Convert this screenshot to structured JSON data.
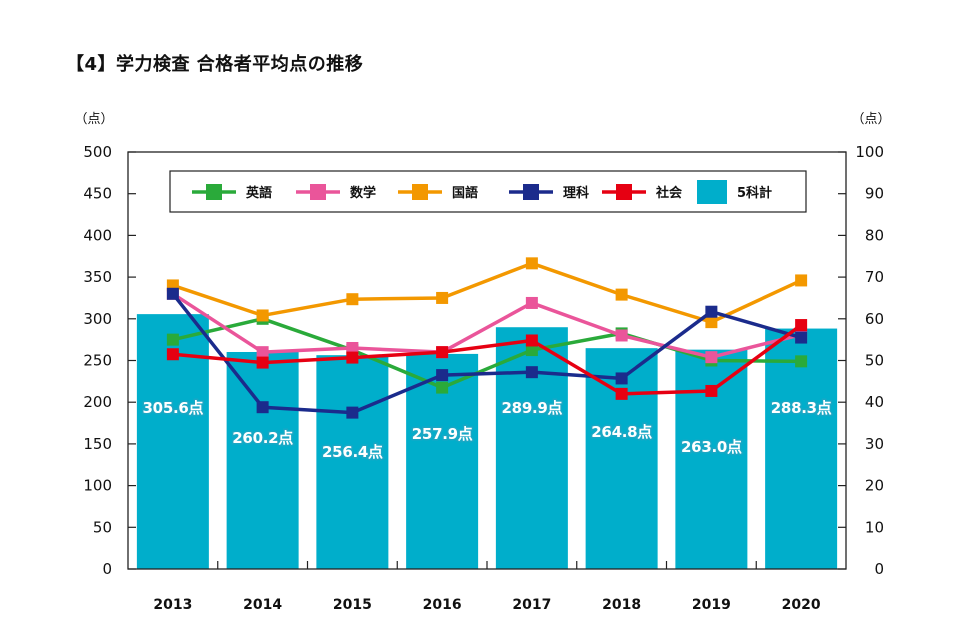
{
  "title": "【4】学力検査 合格者平均点の推移",
  "chart_data": {
    "type": "bar+line",
    "categories": [
      "2013",
      "2014",
      "2015",
      "2016",
      "2017",
      "2018",
      "2019",
      "2020"
    ],
    "left_axis": {
      "unit": "（点）",
      "ylim": [
        0,
        500
      ],
      "ticks": [
        "0",
        "50",
        "100",
        "150",
        "200",
        "250",
        "300",
        "350",
        "400",
        "450",
        "500"
      ]
    },
    "right_axis": {
      "unit": "（点）",
      "ylim": [
        0,
        100
      ],
      "ticks": [
        "0",
        "10",
        "20",
        "30",
        "40",
        "50",
        "60",
        "70",
        "80",
        "90",
        "100"
      ]
    },
    "bars": {
      "name": "5科計",
      "axis": "left",
      "color": "#00aecb",
      "values": [
        305.6,
        260.2,
        256.4,
        257.9,
        289.9,
        264.8,
        263.0,
        288.3
      ],
      "labels": [
        "305.6点",
        "260.2点",
        "256.4点",
        "257.9点",
        "289.9点",
        "264.8点",
        "263.0点",
        "288.3点"
      ]
    },
    "series": [
      {
        "name": "英語",
        "axis": "right",
        "color": "#2aaa3a",
        "values": [
          55.0,
          60.0,
          52.5,
          43.5,
          52.5,
          56.5,
          50.0,
          49.8
        ]
      },
      {
        "name": "数学",
        "axis": "right",
        "color": "#ea559a",
        "values": [
          66.0,
          52.0,
          53.0,
          52.0,
          63.8,
          56.0,
          50.8,
          56.2
        ]
      },
      {
        "name": "国語",
        "axis": "right",
        "color": "#f39800",
        "values": [
          68.0,
          60.8,
          64.7,
          65.0,
          73.3,
          65.8,
          59.2,
          69.2
        ]
      },
      {
        "name": "理科",
        "axis": "right",
        "color": "#1b2b8c",
        "values": [
          66.0,
          38.8,
          37.5,
          46.5,
          47.2,
          45.7,
          61.7,
          55.5
        ]
      },
      {
        "name": "社会",
        "axis": "right",
        "color": "#e60012",
        "values": [
          51.5,
          49.5,
          50.7,
          52.0,
          54.8,
          42.0,
          42.7,
          58.5
        ]
      }
    ],
    "legend_position": "top-center",
    "grid": false
  }
}
